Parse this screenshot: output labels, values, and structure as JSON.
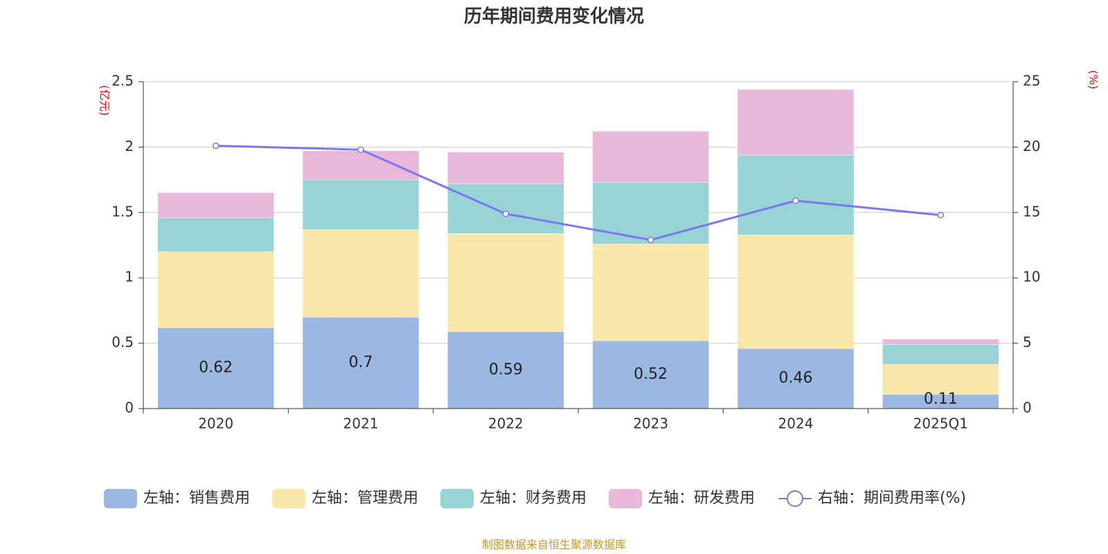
{
  "chart_data": {
    "type": "bar",
    "title": "历年期间费用变化情况",
    "categories": [
      "2020",
      "2021",
      "2022",
      "2023",
      "2024",
      "2025Q1"
    ],
    "series": [
      {
        "name": "左轴：销售费用",
        "axis": "left",
        "kind": "bar",
        "color": "#9bb8e3",
        "values": [
          0.62,
          0.7,
          0.59,
          0.52,
          0.46,
          0.11
        ]
      },
      {
        "name": "左轴：管理费用",
        "axis": "left",
        "kind": "bar",
        "color": "#f8e7a8",
        "values": [
          0.58,
          0.67,
          0.75,
          0.74,
          0.87,
          0.23
        ]
      },
      {
        "name": "左轴：财务费用",
        "axis": "left",
        "kind": "bar",
        "color": "#98d4d6",
        "values": [
          0.26,
          0.38,
          0.38,
          0.47,
          0.61,
          0.15
        ]
      },
      {
        "name": "左轴：研发费用",
        "axis": "left",
        "kind": "bar",
        "color": "#e8b8d8",
        "values": [
          0.19,
          0.22,
          0.24,
          0.39,
          0.5,
          0.04
        ]
      },
      {
        "name": "右轴：期间费用率(%)",
        "axis": "right",
        "kind": "line",
        "color": "#7a78f0",
        "values": [
          20.1,
          19.8,
          14.9,
          12.9,
          15.9,
          14.8
        ]
      }
    ],
    "data_labels": [
      "0.62",
      "0.7",
      "0.59",
      "0.52",
      "0.46",
      "0.11"
    ],
    "y_left": {
      "unit": "(亿元)",
      "ylim": [
        0,
        2.5
      ],
      "ticks": [
        "0",
        "0.5",
        "1",
        "1.5",
        "2",
        "2.5"
      ]
    },
    "y_right": {
      "unit": "(%)",
      "ylim": [
        0,
        25
      ],
      "ticks": [
        "0",
        "5",
        "10",
        "15",
        "20",
        "25"
      ]
    },
    "grid": true,
    "legend_position": "bottom"
  },
  "source": "制图数据来自恒生聚源数据库"
}
